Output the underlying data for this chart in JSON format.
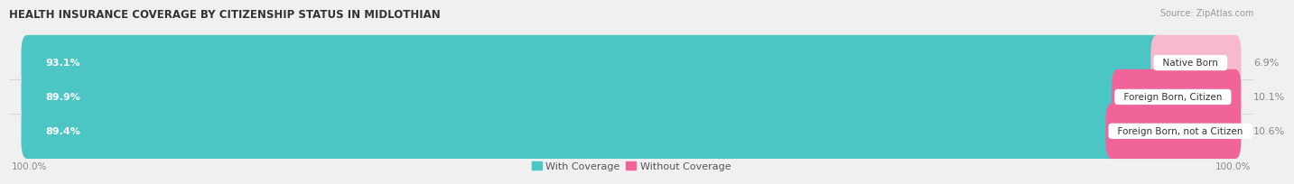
{
  "title": "HEALTH INSURANCE COVERAGE BY CITIZENSHIP STATUS IN MIDLOTHIAN",
  "source": "Source: ZipAtlas.com",
  "categories": [
    "Native Born",
    "Foreign Born, Citizen",
    "Foreign Born, not a Citizen"
  ],
  "with_coverage": [
    93.1,
    89.9,
    89.4
  ],
  "without_coverage": [
    6.9,
    10.1,
    10.6
  ],
  "color_with": "#4CC5C5",
  "color_without": "#F0649A",
  "color_without_light": "#F8B8CE",
  "label_with": "With Coverage",
  "label_without": "Without Coverage",
  "x_left_label": "100.0%",
  "x_right_label": "100.0%",
  "background_color": "#f0f0f0",
  "bar_background": "#e8e8e8",
  "bar_row_background": "#f8f8f8",
  "title_fontsize": 8.5,
  "source_fontsize": 7,
  "bar_label_fontsize": 8,
  "category_fontsize": 7.5,
  "legend_fontsize": 8,
  "axis_label_fontsize": 7.5
}
